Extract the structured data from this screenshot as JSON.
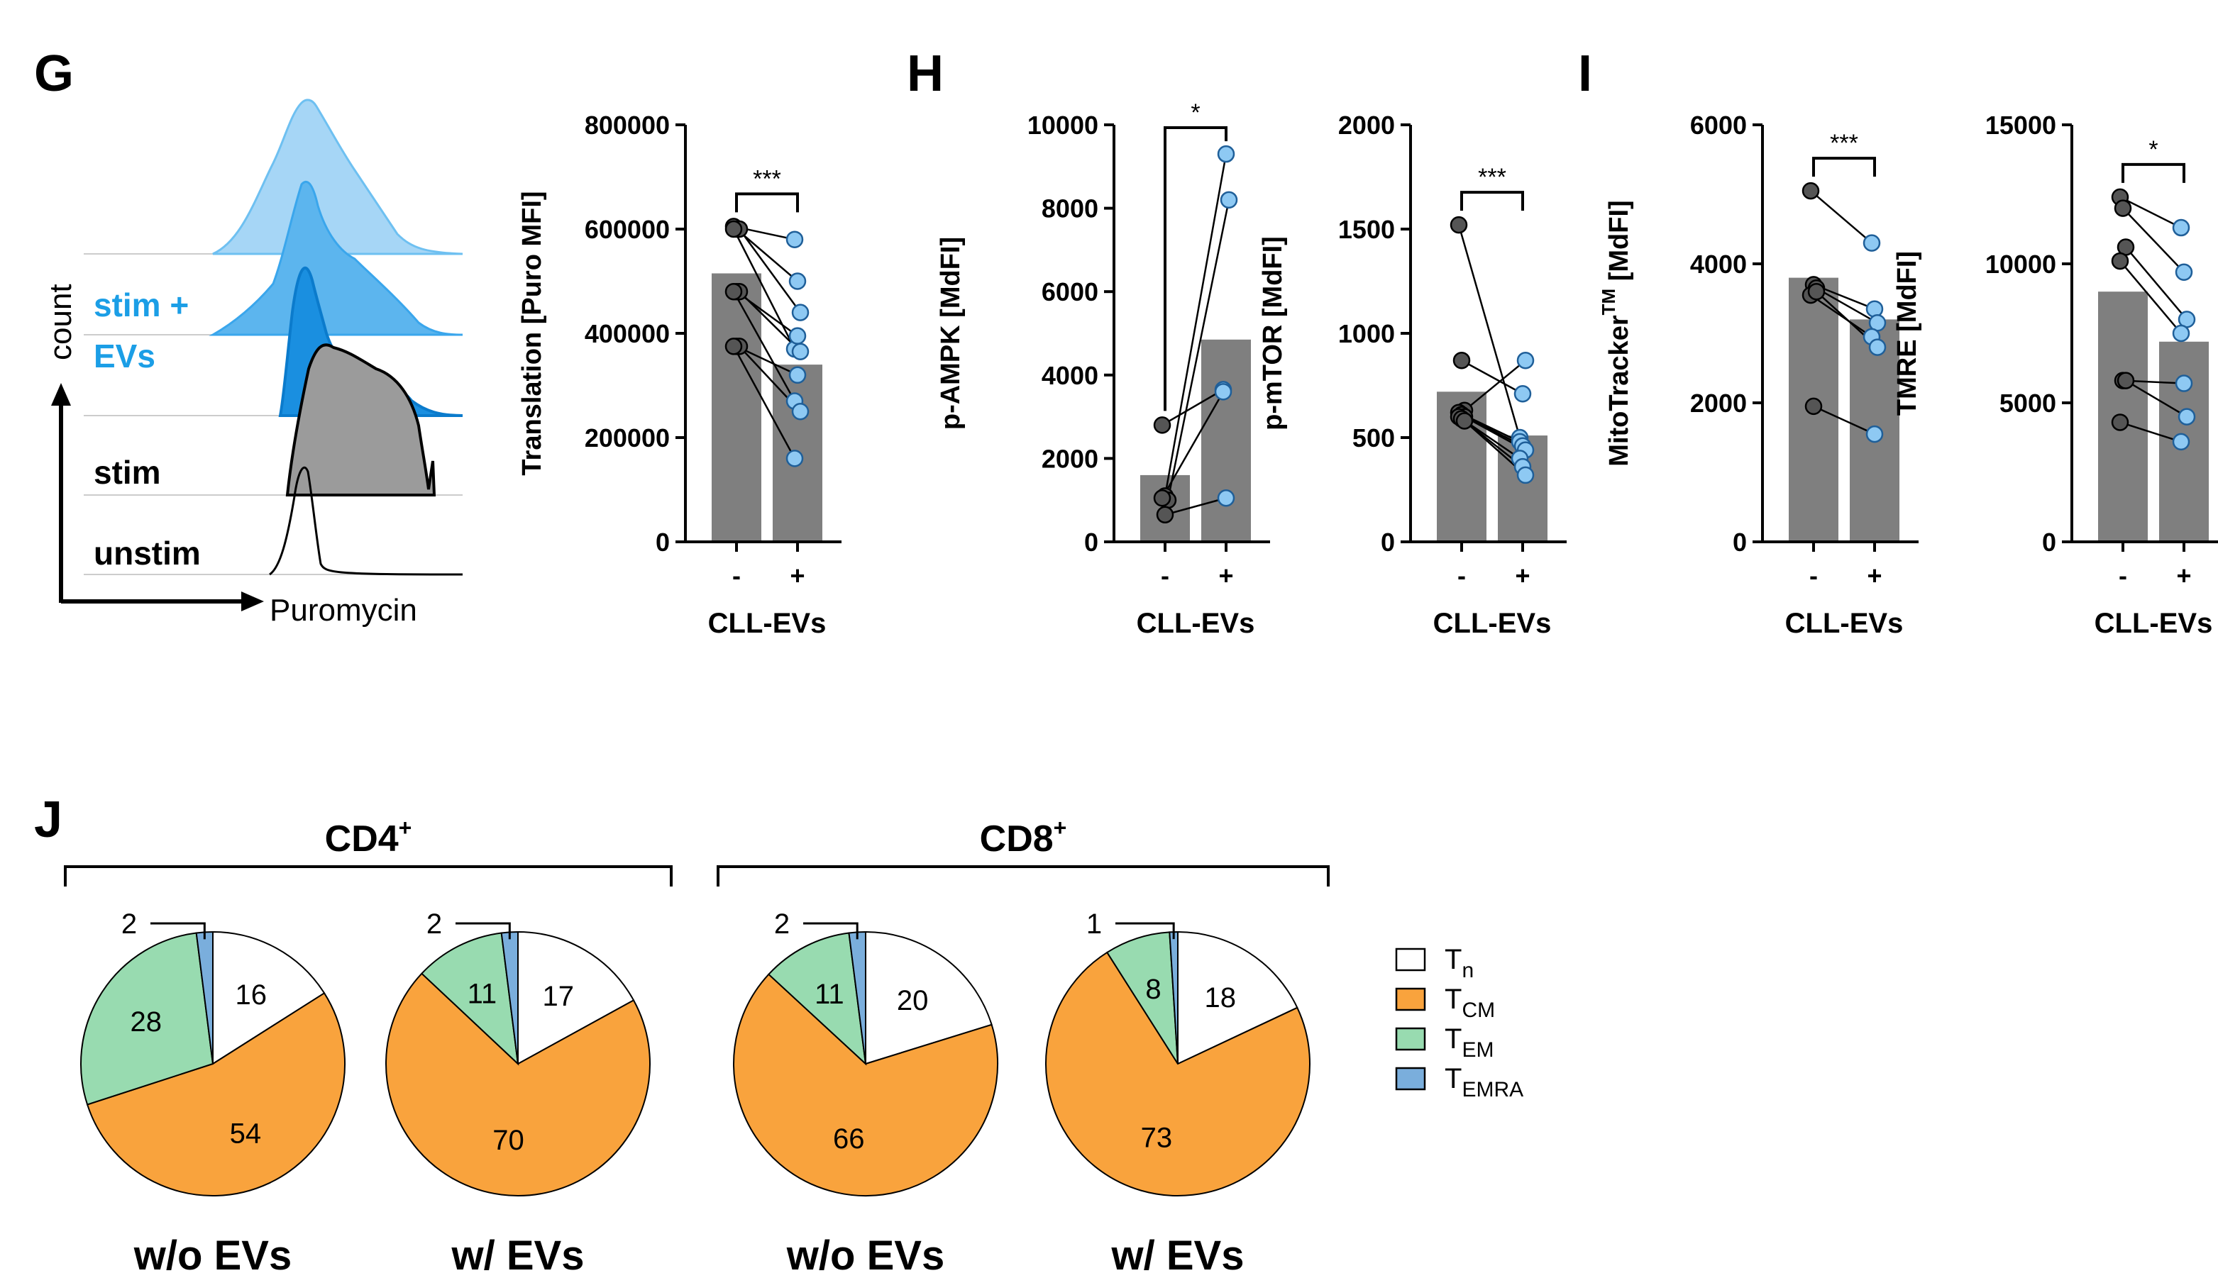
{
  "panels": {
    "G": "G",
    "H": "H",
    "I": "I",
    "J": "J"
  },
  "histogram": {
    "x_label": "Puromycin",
    "y_label": "count",
    "labels": {
      "stim_evs_line1": "stim +",
      "stim_evs_line2": "EVs",
      "stim": "stim",
      "unstim": "unstim"
    },
    "colors": {
      "light_blue": "#a6d6f6",
      "mid_blue": "#5cb5ee",
      "dark_blue": "#1a8fe0",
      "gray": "#9b9b9b",
      "label_blue": "#1b9ee6"
    }
  },
  "chart_data": [
    {
      "type": "bar",
      "id": "translation",
      "ylabel": "Translation [Puro MFI]",
      "xlabel": "CLL-EVs",
      "categories": [
        "-",
        "+"
      ],
      "values": [
        515000,
        340000
      ],
      "ylim": [
        0,
        800000
      ],
      "yticks": [
        0,
        200000,
        400000,
        600000,
        800000
      ],
      "ytick_labels": [
        "0",
        "200000",
        "400000",
        "600000",
        "800000"
      ],
      "pairs": [
        [
          605000,
          580000
        ],
        [
          600000,
          500000
        ],
        [
          600000,
          440000
        ],
        [
          600000,
          370000
        ],
        [
          480000,
          395000
        ],
        [
          480000,
          365000
        ],
        [
          480000,
          270000
        ],
        [
          375000,
          320000
        ],
        [
          375000,
          250000
        ],
        [
          375000,
          160000
        ]
      ],
      "significance": "***"
    },
    {
      "type": "bar",
      "id": "pampk",
      "ylabel": "p-AMPK [MdFI]",
      "xlabel": "CLL-EVs",
      "categories": [
        "-",
        "+"
      ],
      "values": [
        1600,
        4850
      ],
      "ylim": [
        0,
        10000
      ],
      "yticks": [
        0,
        2000,
        4000,
        6000,
        8000,
        10000
      ],
      "ytick_labels": [
        "0",
        "2000",
        "4000",
        "6000",
        "8000",
        "10000"
      ],
      "pairs": [
        [
          2800,
          3650
        ],
        [
          1100,
          9300
        ],
        [
          1000,
          8200
        ],
        [
          1050,
          3600
        ],
        [
          650,
          1050
        ]
      ],
      "significance": "*"
    },
    {
      "type": "bar",
      "id": "pmtor",
      "ylabel": "p-mTOR [MdFI]",
      "xlabel": "CLL-EVs",
      "categories": [
        "-",
        "+"
      ],
      "values": [
        720,
        510
      ],
      "ylim": [
        0,
        2000
      ],
      "yticks": [
        0,
        500,
        1000,
        1500,
        2000
      ],
      "ytick_labels": [
        "0",
        "500",
        "1000",
        "1500",
        "2000"
      ],
      "pairs": [
        [
          1520,
          500
        ],
        [
          870,
          710
        ],
        [
          630,
          870
        ],
        [
          620,
          480
        ],
        [
          610,
          460
        ],
        [
          600,
          440
        ],
        [
          600,
          400
        ],
        [
          590,
          360
        ],
        [
          580,
          320
        ]
      ],
      "significance": "***"
    },
    {
      "type": "bar",
      "id": "mitotracker",
      "ylabel_main": "MitoTracker",
      "ylabel_sup": "TM",
      "ylabel_rest": " [MdFI]",
      "xlabel": "CLL-EVs",
      "categories": [
        "-",
        "+"
      ],
      "values": [
        3800,
        3200
      ],
      "ylim": [
        0,
        6000
      ],
      "yticks": [
        0,
        2000,
        4000,
        6000
      ],
      "ytick_labels": [
        "0",
        "2000",
        "4000",
        "6000"
      ],
      "pairs": [
        [
          5050,
          4300
        ],
        [
          3700,
          3350
        ],
        [
          3650,
          3150
        ],
        [
          3550,
          2950
        ],
        [
          1950,
          1550
        ],
        [
          3600,
          2800
        ]
      ],
      "significance": "***"
    },
    {
      "type": "bar",
      "id": "tmre",
      "ylabel": "TMRE [MdFI]",
      "xlabel": "CLL-EVs",
      "categories": [
        "-",
        "+"
      ],
      "values": [
        9000,
        7200
      ],
      "ylim": [
        0,
        15000
      ],
      "yticks": [
        0,
        5000,
        10000,
        15000
      ],
      "ytick_labels": [
        "0",
        "5000",
        "10000",
        "15000"
      ],
      "pairs": [
        [
          12400,
          11300
        ],
        [
          12000,
          9700
        ],
        [
          10600,
          8000
        ],
        [
          10100,
          7500
        ],
        [
          5800,
          5700
        ],
        [
          5800,
          4500
        ],
        [
          4300,
          3600
        ]
      ],
      "significance": "*"
    },
    {
      "type": "pie",
      "id": "pies",
      "groups": [
        {
          "label": "CD4",
          "sup": "+",
          "pies": [
            {
              "caption": "w/o EVs",
              "values": [
                16,
                54,
                28,
                2
              ],
              "shown": [
                "16",
                "54",
                "28",
                "2"
              ]
            },
            {
              "caption": "w/ EVs",
              "values": [
                17,
                70,
                11,
                2
              ],
              "shown": [
                "17",
                "70",
                "11",
                "2"
              ]
            }
          ]
        },
        {
          "label": "CD8",
          "sup": "+",
          "pies": [
            {
              "caption": "w/o EVs",
              "values": [
                20,
                66,
                11,
                2
              ],
              "shown": [
                "20",
                "66",
                "11",
                "2"
              ]
            },
            {
              "caption": "w/ EVs",
              "values": [
                18,
                73,
                8,
                1
              ],
              "shown": [
                "18",
                "73",
                "8",
                "1"
              ]
            }
          ]
        }
      ],
      "legend": [
        {
          "main": "T",
          "sub": "n",
          "color": "#ffffff"
        },
        {
          "main": "T",
          "sub": "CM",
          "color": "#f9a33d"
        },
        {
          "main": "T",
          "sub": "EM",
          "color": "#98dbb0"
        },
        {
          "main": "T",
          "sub": "EMRA",
          "color": "#7aaedc"
        }
      ]
    }
  ],
  "colors": {
    "bar": "#7f7f7f",
    "dot_minus": "#555555",
    "dot_plus": "#8ec9f3"
  }
}
